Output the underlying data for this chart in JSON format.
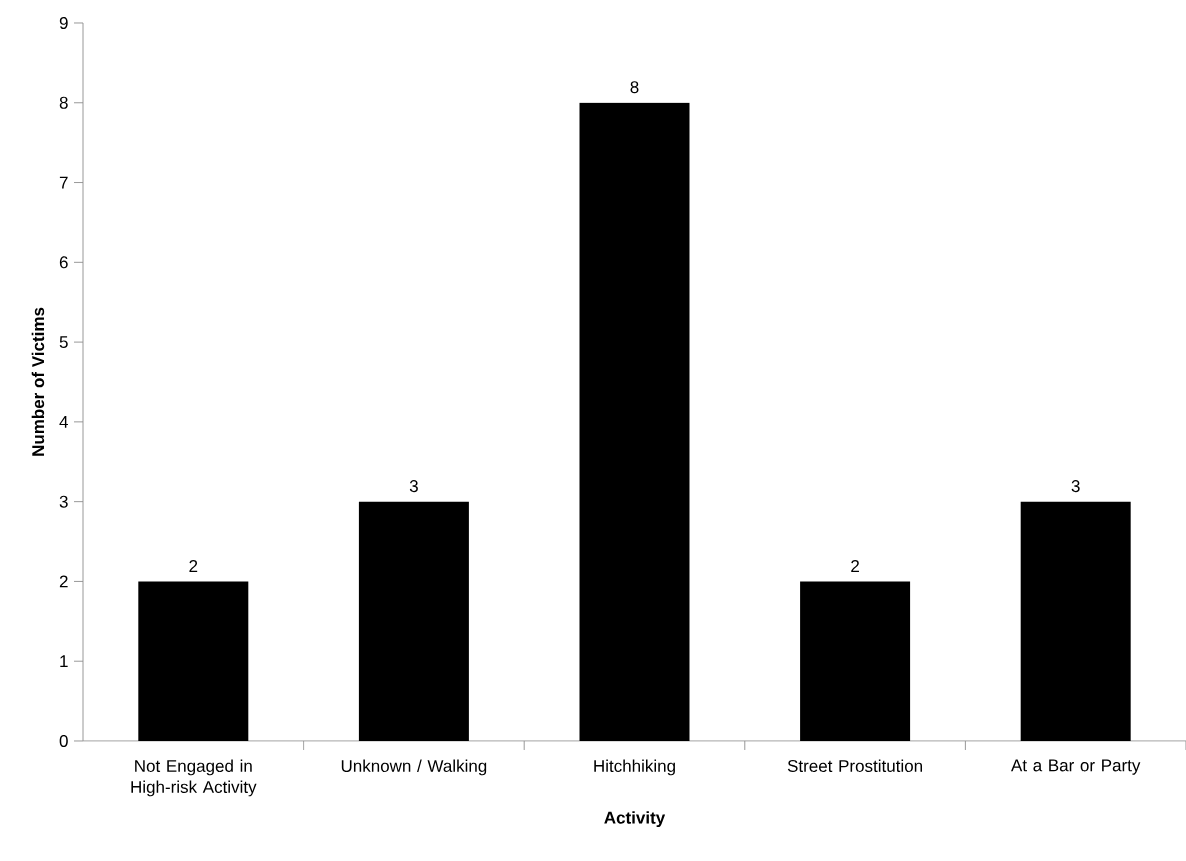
{
  "chart_data": {
    "type": "bar",
    "xlabel": "Activity",
    "ylabel": "Number of Victims",
    "categories": [
      "Not Engaged in High-risk Activity",
      "Unknown / Walking",
      "Hitchhiking",
      "Street Prostitution",
      "At a Bar or Party"
    ],
    "values": [
      2,
      3,
      8,
      2,
      3
    ],
    "color": "#000000",
    "ylim": [
      0,
      9
    ],
    "yticks": [
      0,
      1,
      2,
      3,
      4,
      5,
      6,
      7,
      8,
      9
    ],
    "data_labels": true,
    "grid": false
  }
}
